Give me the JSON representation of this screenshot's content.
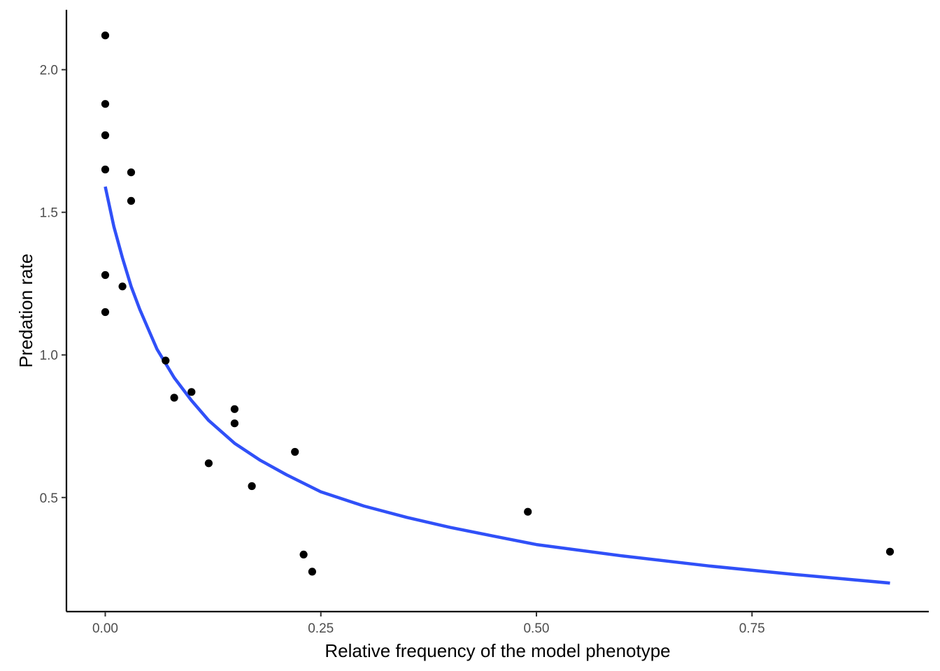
{
  "chart_data": {
    "type": "scatter",
    "title": "",
    "xlabel": "Relative frequency of the model phenotype",
    "ylabel": "Predation rate",
    "xlim": [
      -0.045,
      0.955
    ],
    "ylim": [
      0.1,
      2.21
    ],
    "x_ticks": [
      0.0,
      0.25,
      0.5,
      0.75
    ],
    "x_tick_labels": [
      "0.00",
      "0.25",
      "0.50",
      "0.75"
    ],
    "y_ticks": [
      0.5,
      1.0,
      1.5,
      2.0
    ],
    "y_tick_labels": [
      "0.5",
      "1.0",
      "1.5",
      "2.0"
    ],
    "grid": false,
    "point_color": "#000000",
    "points": [
      {
        "x": 0.0,
        "y": 2.12
      },
      {
        "x": 0.0,
        "y": 1.88
      },
      {
        "x": 0.0,
        "y": 1.77
      },
      {
        "x": 0.0,
        "y": 1.65
      },
      {
        "x": 0.0,
        "y": 1.28
      },
      {
        "x": 0.0,
        "y": 1.15
      },
      {
        "x": 0.02,
        "y": 1.24
      },
      {
        "x": 0.03,
        "y": 1.64
      },
      {
        "x": 0.03,
        "y": 1.54
      },
      {
        "x": 0.07,
        "y": 0.98
      },
      {
        "x": 0.08,
        "y": 0.85
      },
      {
        "x": 0.1,
        "y": 0.87
      },
      {
        "x": 0.12,
        "y": 0.62
      },
      {
        "x": 0.15,
        "y": 0.81
      },
      {
        "x": 0.15,
        "y": 0.76
      },
      {
        "x": 0.17,
        "y": 0.54
      },
      {
        "x": 0.22,
        "y": 0.66
      },
      {
        "x": 0.23,
        "y": 0.3
      },
      {
        "x": 0.24,
        "y": 0.24
      },
      {
        "x": 0.49,
        "y": 0.45
      },
      {
        "x": 0.91,
        "y": 0.31
      }
    ],
    "fit_line": {
      "color": "#3050f8",
      "x": [
        0.0,
        0.01,
        0.02,
        0.03,
        0.04,
        0.05,
        0.06,
        0.08,
        0.1,
        0.12,
        0.15,
        0.18,
        0.21,
        0.25,
        0.3,
        0.35,
        0.4,
        0.45,
        0.5,
        0.6,
        0.7,
        0.8,
        0.91
      ],
      "y": [
        1.59,
        1.45,
        1.34,
        1.24,
        1.16,
        1.09,
        1.02,
        0.92,
        0.84,
        0.77,
        0.69,
        0.63,
        0.58,
        0.52,
        0.47,
        0.43,
        0.395,
        0.365,
        0.335,
        0.295,
        0.26,
        0.23,
        0.2
      ]
    }
  }
}
